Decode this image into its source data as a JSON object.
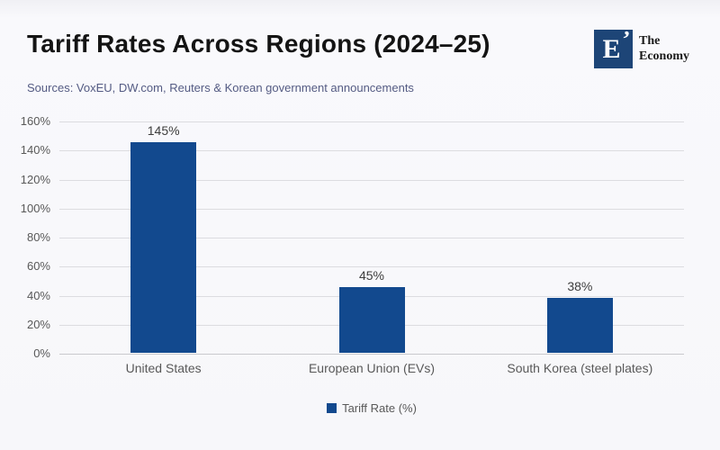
{
  "header": {
    "sources": "Sources: VoxEU, DW.com, Reuters & Korean government announcements",
    "logo": {
      "monogram": "E",
      "monogram_mark": "’",
      "name_line1": "The",
      "name_line2": "Economy"
    }
  },
  "colors": {
    "background": "#f7f7fa",
    "bar": "#12498e",
    "gridline": "#dcdce0",
    "axis_line": "#c9c9cd",
    "tick_label": "#595959",
    "data_label": "#3d3d3d",
    "title_text": "#141414",
    "sources_text": "#545b83",
    "logo_background": "#1d4577"
  },
  "chart_data": {
    "type": "bar",
    "title": "Tariff Rates Across Regions (2024–25)",
    "categories": [
      "United States",
      "European Union (EVs)",
      "South Korea (steel plates)"
    ],
    "values": [
      145,
      45,
      38
    ],
    "data_labels": [
      "145%",
      "45%",
      "38%"
    ],
    "legend": "Tariff Rate (%)",
    "xlabel": "",
    "ylabel": "",
    "ylim": [
      0,
      160
    ],
    "ytick_step": 20,
    "ytick_labels": [
      "0%",
      "20%",
      "40%",
      "60%",
      "80%",
      "100%",
      "120%",
      "140%",
      "160%"
    ],
    "grid": true,
    "legend_position": "bottom"
  }
}
